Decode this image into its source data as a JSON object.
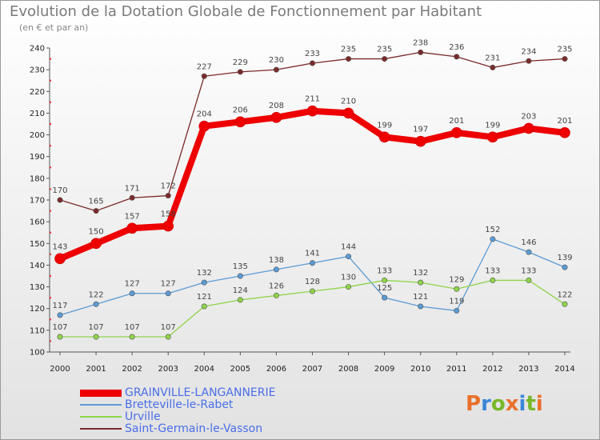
{
  "header": {
    "title": "Evolution de la Dotation Globale de Fonctionnement par Habitant",
    "subtitle": "(en € et par an)"
  },
  "logo": {
    "text": "Proxiti",
    "colors": [
      "#e8712b",
      "#3a86d8",
      "#78b82a",
      "#e8712b",
      "#3a86d8",
      "#78b82a",
      "#e8712b"
    ]
  },
  "chart_data": {
    "type": "line",
    "x": [
      2000,
      2001,
      2002,
      2003,
      2004,
      2005,
      2006,
      2007,
      2008,
      2009,
      2010,
      2011,
      2012,
      2013,
      2014
    ],
    "ylim": [
      100,
      240
    ],
    "yticks": [
      100,
      110,
      120,
      130,
      140,
      150,
      160,
      170,
      180,
      190,
      200,
      210,
      220,
      230,
      240
    ],
    "grid": false,
    "legend_position": "bottom-left",
    "series": [
      {
        "name": "GRAINVILLE-LANGANNERIE",
        "color": "#ee0000",
        "highlight": true,
        "values": [
          143,
          150,
          157,
          158,
          204,
          206,
          208,
          211,
          210,
          199,
          197,
          201,
          199,
          203,
          201
        ]
      },
      {
        "name": "Bretteville-le-Rabet",
        "color": "#5b9bd5",
        "highlight": false,
        "values": [
          117,
          122,
          127,
          127,
          132,
          135,
          138,
          141,
          144,
          125,
          121,
          119,
          152,
          146,
          139
        ]
      },
      {
        "name": "Urville",
        "color": "#8fd44a",
        "highlight": false,
        "values": [
          107,
          107,
          107,
          107,
          121,
          124,
          126,
          128,
          130,
          133,
          132,
          129,
          133,
          133,
          122
        ]
      },
      {
        "name": "Saint-Germain-le-Vasson",
        "color": "#7b2a2a",
        "highlight": false,
        "values": [
          170,
          165,
          171,
          172,
          227,
          229,
          230,
          233,
          235,
          235,
          238,
          236,
          231,
          234,
          235
        ]
      }
    ]
  }
}
